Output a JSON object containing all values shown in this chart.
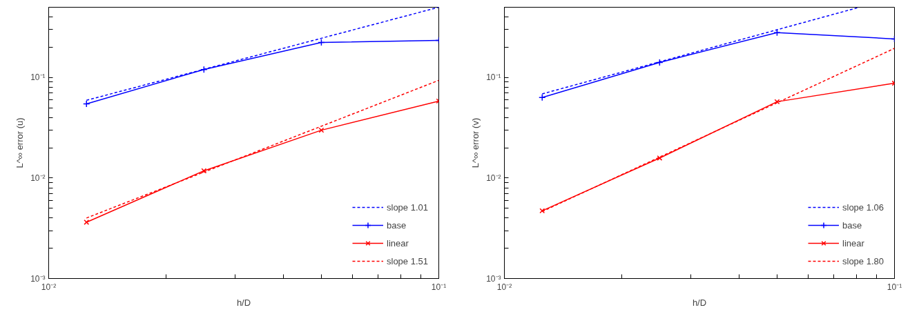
{
  "chart_data": [
    {
      "type": "line",
      "xlabel": "h/D",
      "ylabel": "L^∞ error (u)",
      "log": "xy",
      "grid": false,
      "legend": "bottom right",
      "xlim": [
        0.01,
        0.1
      ],
      "ylim": [
        0.001,
        0.5
      ],
      "xticks": [
        {
          "value": 0.01,
          "label": "10⁻²"
        },
        {
          "value": 0.02,
          "label": null
        },
        {
          "value": 0.03,
          "label": null
        },
        {
          "value": 0.04,
          "label": null
        },
        {
          "value": 0.05,
          "label": null
        },
        {
          "value": 0.06,
          "label": null
        },
        {
          "value": 0.07,
          "label": null
        },
        {
          "value": 0.08,
          "label": null
        },
        {
          "value": 0.09,
          "label": null
        },
        {
          "value": 0.1,
          "label": "10⁻¹"
        }
      ],
      "yticks": [
        {
          "value": 0.001,
          "label": "10⁻³"
        },
        {
          "value": 0.002,
          "label": null
        },
        {
          "value": 0.003,
          "label": null
        },
        {
          "value": 0.004,
          "label": null
        },
        {
          "value": 0.005,
          "label": null
        },
        {
          "value": 0.006,
          "label": null
        },
        {
          "value": 0.007,
          "label": null
        },
        {
          "value": 0.008,
          "label": null
        },
        {
          "value": 0.009,
          "label": null
        },
        {
          "value": 0.01,
          "label": "10⁻²"
        },
        {
          "value": 0.02,
          "label": null
        },
        {
          "value": 0.03,
          "label": null
        },
        {
          "value": 0.04,
          "label": null
        },
        {
          "value": 0.05,
          "label": null
        },
        {
          "value": 0.06,
          "label": null
        },
        {
          "value": 0.07,
          "label": null
        },
        {
          "value": 0.08,
          "label": null
        },
        {
          "value": 0.09,
          "label": null
        },
        {
          "value": 0.1,
          "label": "10⁻¹"
        },
        {
          "value": 0.2,
          "label": null
        },
        {
          "value": 0.3,
          "label": null
        },
        {
          "value": 0.4,
          "label": null
        },
        {
          "value": 0.5,
          "label": null
        }
      ],
      "series": [
        {
          "name": "slope 1.01",
          "color": "#0000ff",
          "line_style": "dashed",
          "marker": "none",
          "x": [
            0.0125,
            0.1
          ],
          "values": [
            0.0593,
            0.5
          ]
        },
        {
          "name": "base",
          "color": "#0000ff",
          "line_style": "solid",
          "marker": "cross",
          "x": [
            0.0125,
            0.025,
            0.05,
            0.1
          ],
          "values": [
            0.0547,
            0.12,
            0.223,
            0.234
          ]
        },
        {
          "name": "linear",
          "color": "#ff0000",
          "line_style": "solid",
          "marker": "x",
          "x": [
            0.0125,
            0.025,
            0.05,
            0.1
          ],
          "values": [
            0.00363,
            0.0118,
            0.0299,
            0.0583
          ]
        },
        {
          "name": "slope 1.51",
          "color": "#ff0000",
          "line_style": "dashed",
          "marker": "none",
          "x": [
            0.0125,
            0.1
          ],
          "values": [
            0.004,
            0.0937
          ]
        }
      ]
    },
    {
      "type": "line",
      "xlabel": "h/D",
      "ylabel": "L^∞ error (v)",
      "log": "xy",
      "grid": false,
      "legend": "bottom right",
      "xlim": [
        0.01,
        0.1
      ],
      "ylim": [
        0.001,
        0.5
      ],
      "xticks": [
        {
          "value": 0.01,
          "label": "10⁻²"
        },
        {
          "value": 0.02,
          "label": null
        },
        {
          "value": 0.03,
          "label": null
        },
        {
          "value": 0.04,
          "label": null
        },
        {
          "value": 0.05,
          "label": null
        },
        {
          "value": 0.06,
          "label": null
        },
        {
          "value": 0.07,
          "label": null
        },
        {
          "value": 0.08,
          "label": null
        },
        {
          "value": 0.09,
          "label": null
        },
        {
          "value": 0.1,
          "label": "10⁻¹"
        }
      ],
      "yticks": [
        {
          "value": 0.001,
          "label": "10⁻³"
        },
        {
          "value": 0.002,
          "label": null
        },
        {
          "value": 0.003,
          "label": null
        },
        {
          "value": 0.004,
          "label": null
        },
        {
          "value": 0.005,
          "label": null
        },
        {
          "value": 0.006,
          "label": null
        },
        {
          "value": 0.007,
          "label": null
        },
        {
          "value": 0.008,
          "label": null
        },
        {
          "value": 0.009,
          "label": null
        },
        {
          "value": 0.01,
          "label": "10⁻²"
        },
        {
          "value": 0.02,
          "label": null
        },
        {
          "value": 0.03,
          "label": null
        },
        {
          "value": 0.04,
          "label": null
        },
        {
          "value": 0.05,
          "label": null
        },
        {
          "value": 0.06,
          "label": null
        },
        {
          "value": 0.07,
          "label": null
        },
        {
          "value": 0.08,
          "label": null
        },
        {
          "value": 0.09,
          "label": null
        },
        {
          "value": 0.1,
          "label": "10⁻¹"
        },
        {
          "value": 0.2,
          "label": null
        },
        {
          "value": 0.3,
          "label": null
        },
        {
          "value": 0.4,
          "label": null
        },
        {
          "value": 0.5,
          "label": null
        }
      ],
      "series": [
        {
          "name": "slope 1.06",
          "color": "#0000ff",
          "line_style": "dashed",
          "marker": "none",
          "x": [
            0.0125,
            0.0813
          ],
          "values": [
            0.0687,
            0.5
          ]
        },
        {
          "name": "base",
          "color": "#0000ff",
          "line_style": "solid",
          "marker": "cross",
          "x": [
            0.0125,
            0.025,
            0.05,
            0.1
          ],
          "values": [
            0.0633,
            0.141,
            0.28,
            0.242
          ]
        },
        {
          "name": "linear",
          "color": "#ff0000",
          "line_style": "solid",
          "marker": "x",
          "x": [
            0.0125,
            0.025,
            0.05,
            0.1
          ],
          "values": [
            0.00472,
            0.0158,
            0.0574,
            0.0877
          ]
        },
        {
          "name": "slope 1.80",
          "color": "#ff0000",
          "line_style": "dashed",
          "marker": "none",
          "x": [
            0.0125,
            0.1
          ],
          "values": [
            0.00464,
            0.195
          ]
        }
      ]
    }
  ]
}
